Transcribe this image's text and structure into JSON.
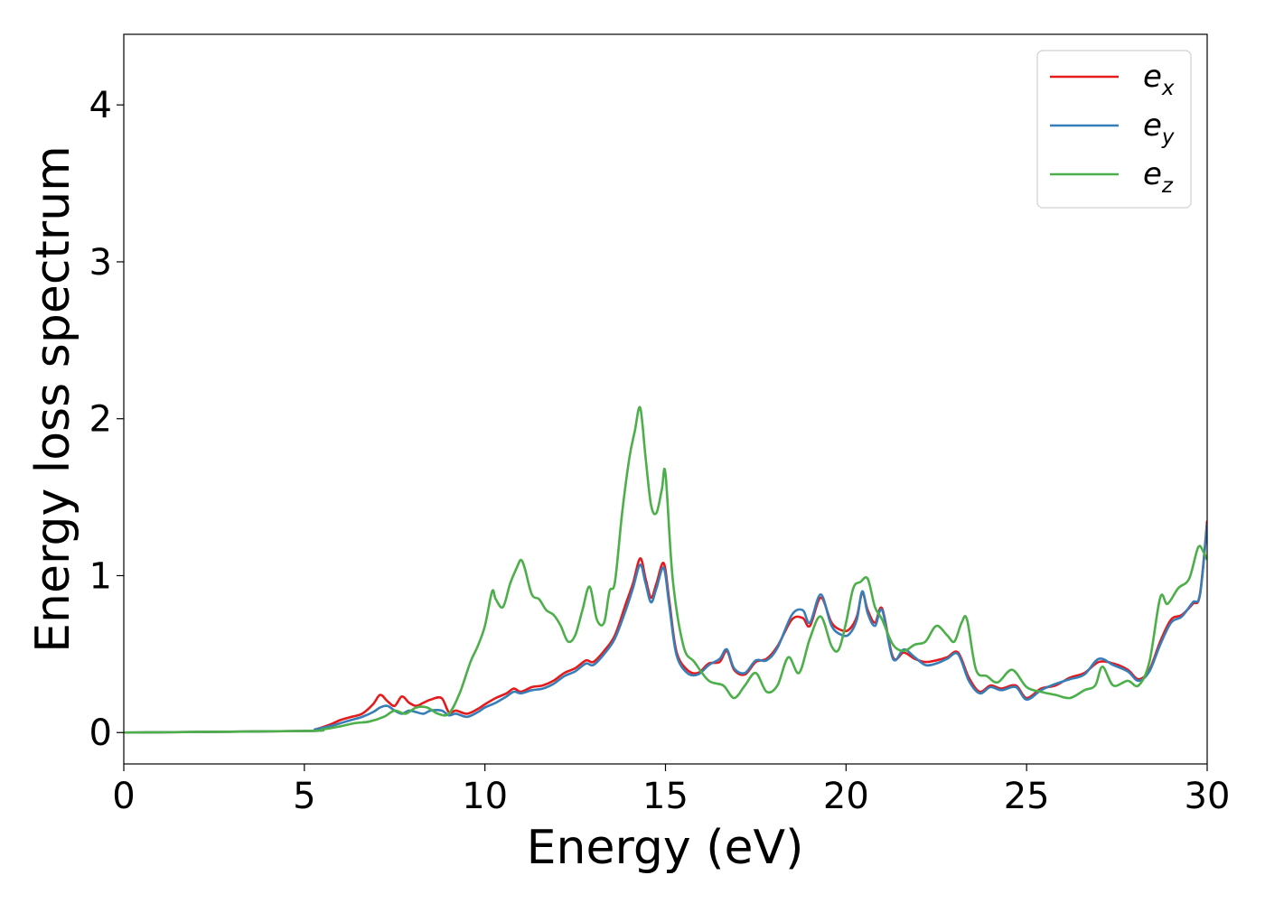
{
  "chart_data": {
    "type": "line",
    "title": "",
    "xlabel": "Energy (eV)",
    "ylabel": "Energy loss spectrum",
    "xlim": [
      0,
      30
    ],
    "ylim": [
      -0.2,
      4.45
    ],
    "xticks": [
      "0",
      "5",
      "10",
      "15",
      "20",
      "25",
      "30"
    ],
    "yticks": [
      "0",
      "1",
      "2",
      "3",
      "4"
    ],
    "grid": false,
    "legend_position": "top-right",
    "series": [
      {
        "name": "e_x",
        "label_base": "e",
        "label_sub": "x",
        "color": "#e41a1c",
        "x": [
          0,
          5,
          5.3,
          5.7,
          6,
          6.3,
          6.6,
          6.9,
          7.1,
          7.3,
          7.5,
          7.7,
          7.9,
          8.1,
          8.3,
          8.5,
          8.8,
          9.0,
          9.2,
          9.5,
          9.8,
          10.0,
          10.3,
          10.6,
          10.8,
          11.0,
          11.3,
          11.6,
          11.9,
          12.2,
          12.5,
          12.8,
          13.0,
          13.3,
          13.6,
          13.9,
          14.1,
          14.3,
          14.45,
          14.6,
          14.75,
          14.95,
          15.1,
          15.3,
          15.6,
          15.9,
          16.2,
          16.5,
          16.7,
          16.9,
          17.2,
          17.5,
          17.8,
          18.1,
          18.5,
          18.8,
          19.0,
          19.3,
          19.6,
          19.9,
          20.1,
          20.3,
          20.45,
          20.6,
          20.8,
          21.0,
          21.3,
          21.6,
          21.9,
          22.2,
          22.5,
          22.8,
          23.1,
          23.4,
          23.7,
          24.0,
          24.3,
          24.7,
          25.0,
          25.4,
          25.8,
          26.2,
          26.6,
          27.0,
          27.4,
          27.8,
          28.1,
          28.4,
          28.7,
          29.0,
          29.3,
          29.6,
          29.8,
          30.0
        ],
        "y": [
          0.0,
          0.01,
          0.02,
          0.05,
          0.08,
          0.1,
          0.12,
          0.18,
          0.24,
          0.2,
          0.17,
          0.23,
          0.19,
          0.17,
          0.19,
          0.21,
          0.22,
          0.13,
          0.14,
          0.12,
          0.15,
          0.18,
          0.22,
          0.25,
          0.28,
          0.26,
          0.29,
          0.3,
          0.33,
          0.38,
          0.41,
          0.46,
          0.45,
          0.52,
          0.62,
          0.82,
          0.95,
          1.11,
          0.98,
          0.86,
          0.95,
          1.08,
          0.85,
          0.52,
          0.4,
          0.38,
          0.44,
          0.45,
          0.52,
          0.4,
          0.37,
          0.45,
          0.47,
          0.55,
          0.72,
          0.73,
          0.68,
          0.86,
          0.7,
          0.65,
          0.66,
          0.74,
          0.89,
          0.78,
          0.7,
          0.79,
          0.48,
          0.51,
          0.47,
          0.45,
          0.46,
          0.48,
          0.51,
          0.35,
          0.26,
          0.3,
          0.28,
          0.3,
          0.22,
          0.28,
          0.3,
          0.35,
          0.38,
          0.45,
          0.44,
          0.4,
          0.34,
          0.4,
          0.58,
          0.72,
          0.75,
          0.82,
          0.88,
          1.35
        ]
      },
      {
        "name": "e_y",
        "label_base": "e",
        "label_sub": "y",
        "color": "#377eb8",
        "x": [
          0,
          5,
          5.3,
          5.7,
          6,
          6.3,
          6.6,
          6.9,
          7.1,
          7.3,
          7.5,
          7.7,
          7.9,
          8.1,
          8.3,
          8.5,
          8.8,
          9.0,
          9.2,
          9.5,
          9.8,
          10.0,
          10.3,
          10.6,
          10.8,
          11.0,
          11.3,
          11.6,
          11.9,
          12.2,
          12.5,
          12.8,
          13.0,
          13.3,
          13.6,
          13.9,
          14.1,
          14.3,
          14.45,
          14.6,
          14.75,
          14.95,
          15.1,
          15.3,
          15.6,
          15.9,
          16.2,
          16.5,
          16.7,
          16.9,
          17.2,
          17.5,
          17.8,
          18.1,
          18.5,
          18.8,
          19.0,
          19.3,
          19.6,
          19.9,
          20.1,
          20.3,
          20.45,
          20.6,
          20.8,
          21.0,
          21.3,
          21.6,
          21.9,
          22.2,
          22.5,
          22.8,
          23.1,
          23.4,
          23.7,
          24.0,
          24.3,
          24.7,
          25.0,
          25.4,
          25.8,
          26.2,
          26.6,
          27.0,
          27.4,
          27.8,
          28.1,
          28.4,
          28.7,
          29.0,
          29.3,
          29.6,
          29.8,
          30.0
        ],
        "y": [
          0.0,
          0.01,
          0.02,
          0.04,
          0.06,
          0.08,
          0.1,
          0.13,
          0.16,
          0.17,
          0.14,
          0.12,
          0.14,
          0.13,
          0.12,
          0.14,
          0.14,
          0.11,
          0.12,
          0.1,
          0.13,
          0.16,
          0.19,
          0.23,
          0.26,
          0.25,
          0.27,
          0.28,
          0.31,
          0.36,
          0.39,
          0.44,
          0.43,
          0.5,
          0.6,
          0.78,
          0.92,
          1.07,
          0.95,
          0.83,
          0.92,
          1.05,
          0.82,
          0.5,
          0.38,
          0.37,
          0.43,
          0.47,
          0.53,
          0.41,
          0.38,
          0.46,
          0.46,
          0.54,
          0.75,
          0.78,
          0.7,
          0.88,
          0.68,
          0.62,
          0.63,
          0.72,
          0.9,
          0.76,
          0.68,
          0.78,
          0.47,
          0.53,
          0.48,
          0.43,
          0.44,
          0.47,
          0.5,
          0.33,
          0.25,
          0.29,
          0.27,
          0.29,
          0.21,
          0.27,
          0.31,
          0.34,
          0.37,
          0.47,
          0.43,
          0.39,
          0.33,
          0.39,
          0.56,
          0.7,
          0.74,
          0.83,
          0.88,
          1.33
        ]
      },
      {
        "name": "e_z",
        "label_base": "e",
        "label_sub": "z",
        "color": "#4daf4a",
        "x": [
          0,
          5,
          5.5,
          6,
          6.4,
          6.8,
          7.2,
          7.5,
          7.8,
          8.1,
          8.4,
          8.7,
          9.0,
          9.3,
          9.6,
          9.8,
          10.0,
          10.2,
          10.3,
          10.5,
          10.7,
          10.9,
          11.0,
          11.1,
          11.3,
          11.5,
          11.7,
          11.9,
          12.1,
          12.3,
          12.5,
          12.7,
          12.9,
          13.1,
          13.3,
          13.45,
          13.6,
          13.8,
          14.0,
          14.15,
          14.3,
          14.45,
          14.6,
          14.75,
          14.9,
          15.0,
          15.2,
          15.5,
          15.8,
          16.2,
          16.6,
          16.9,
          17.2,
          17.5,
          17.8,
          18.1,
          18.4,
          18.7,
          19.0,
          19.3,
          19.6,
          19.8,
          20.0,
          20.2,
          20.4,
          20.6,
          20.8,
          21.0,
          21.3,
          21.6,
          21.9,
          22.2,
          22.5,
          22.8,
          23.0,
          23.2,
          23.35,
          23.6,
          23.9,
          24.2,
          24.6,
          25.0,
          25.4,
          25.8,
          26.2,
          26.6,
          26.9,
          27.1,
          27.4,
          27.8,
          28.1,
          28.4,
          28.7,
          28.9,
          29.2,
          29.5,
          29.75,
          29.9,
          30.0
        ],
        "y": [
          0.0,
          0.01,
          0.02,
          0.04,
          0.06,
          0.07,
          0.1,
          0.14,
          0.12,
          0.16,
          0.16,
          0.12,
          0.12,
          0.25,
          0.45,
          0.55,
          0.68,
          0.9,
          0.85,
          0.8,
          0.95,
          1.06,
          1.1,
          1.05,
          0.88,
          0.85,
          0.78,
          0.75,
          0.68,
          0.58,
          0.62,
          0.78,
          0.93,
          0.72,
          0.7,
          0.9,
          0.96,
          1.4,
          1.75,
          1.92,
          2.07,
          1.75,
          1.45,
          1.4,
          1.55,
          1.65,
          0.98,
          0.55,
          0.45,
          0.33,
          0.3,
          0.22,
          0.3,
          0.38,
          0.26,
          0.3,
          0.48,
          0.38,
          0.6,
          0.74,
          0.55,
          0.53,
          0.7,
          0.92,
          0.96,
          0.98,
          0.8,
          0.72,
          0.56,
          0.52,
          0.56,
          0.58,
          0.68,
          0.62,
          0.58,
          0.7,
          0.72,
          0.4,
          0.36,
          0.32,
          0.4,
          0.29,
          0.26,
          0.24,
          0.22,
          0.27,
          0.3,
          0.42,
          0.3,
          0.33,
          0.3,
          0.45,
          0.86,
          0.82,
          0.92,
          0.98,
          1.18,
          1.15,
          1.1
        ]
      }
    ]
  }
}
